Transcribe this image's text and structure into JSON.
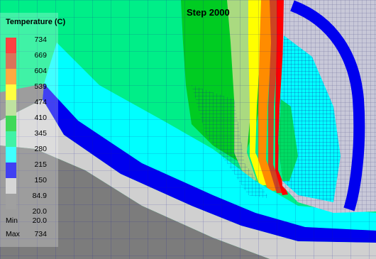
{
  "title": "Step 2000",
  "legend": {
    "title": "Temperature (C)",
    "levels": [
      {
        "label": "734",
        "color": "#ff0000"
      },
      {
        "label": "669",
        "color": "#cc4422"
      },
      {
        "label": "604",
        "color": "#ff8c00"
      },
      {
        "label": "539",
        "color": "#ffff00"
      },
      {
        "label": "474",
        "color": "#aada80"
      },
      {
        "label": "410",
        "color": "#00cc22"
      },
      {
        "label": "345",
        "color": "#00ee88"
      },
      {
        "label": "280",
        "color": "#00ffff"
      },
      {
        "label": "215",
        "color": "#0000ee"
      },
      {
        "label": "150",
        "color": "#c8c8c8"
      },
      {
        "label": "84.9",
        "color": "#808080"
      },
      {
        "label": "20.0",
        "color": ""
      }
    ],
    "min_label": "Min",
    "min_value": "20.0",
    "max_label": "Max",
    "max_value": "734"
  },
  "colors": {
    "mesh_lines": "#1a1a99",
    "dark_gray_region": "#7c7c7c",
    "light_gray_region": "#d0d0d0",
    "tool_region": "#c8c8d8"
  }
}
